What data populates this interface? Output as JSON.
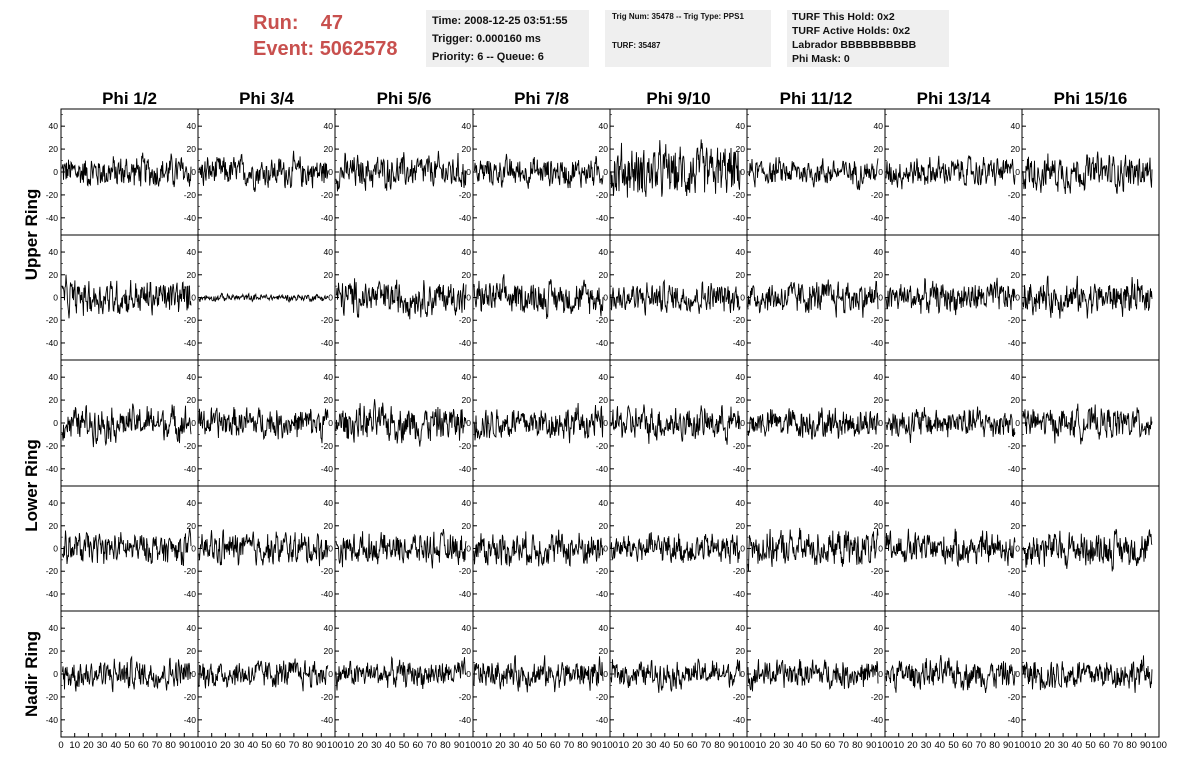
{
  "header": {
    "run_label": "Run:",
    "run_value": "47",
    "event_label": "Event:",
    "event_value": "5062578"
  },
  "info_box_1": {
    "time": "Time: 2008-12-25 03:51:55",
    "trigger": "Trigger: 0.000160 ms",
    "priority": "Priority: 6 -- Queue: 6"
  },
  "info_box_2": {
    "trig": "Trig Num: 35478 -- Trig Type: PPS1",
    "turf": "TURF: 35487"
  },
  "info_box_3": {
    "hold": "TURF This Hold: 0x2",
    "active": "TURF Active Holds: 0x2",
    "labrador": "Labrador BBBBBBBBBB",
    "phimask": "Phi Mask: 0"
  },
  "colors": {
    "header_text": "#c8504e",
    "info_box_bg": "#efefef",
    "trace": "#000000"
  },
  "chart_data": {
    "type": "line",
    "columns": [
      "Phi 1/2",
      "Phi 3/4",
      "Phi 5/6",
      "Phi 7/8",
      "Phi 9/10",
      "Phi 11/12",
      "Phi 13/14",
      "Phi 15/16"
    ],
    "rows": 5,
    "ring_labels": [
      {
        "label": "Upper Ring",
        "rows": [
          0,
          1
        ]
      },
      {
        "label": "Lower Ring",
        "rows": [
          2,
          3
        ]
      },
      {
        "label": "Nadir Ring",
        "rows": [
          4
        ]
      }
    ],
    "xlim": [
      0,
      100
    ],
    "ylim": [
      -55,
      55
    ],
    "y_ticks": [
      -40,
      -20,
      0,
      20,
      40
    ],
    "x_tick_labels": [
      "0",
      "10",
      "20",
      "30",
      "40",
      "50",
      "60",
      "70",
      "80",
      "90",
      "100"
    ],
    "samples_per_trace": 260,
    "trace_amplitude": [
      [
        14,
        13,
        14,
        12,
        22,
        11,
        12,
        15
      ],
      [
        15,
        3,
        15,
        14,
        13,
        14,
        13,
        14
      ],
      [
        14,
        13,
        15,
        14,
        14,
        13,
        13,
        13
      ],
      [
        13,
        14,
        13,
        14,
        13,
        15,
        14,
        15
      ],
      [
        13,
        12,
        11,
        12,
        11,
        12,
        12,
        13
      ]
    ]
  }
}
